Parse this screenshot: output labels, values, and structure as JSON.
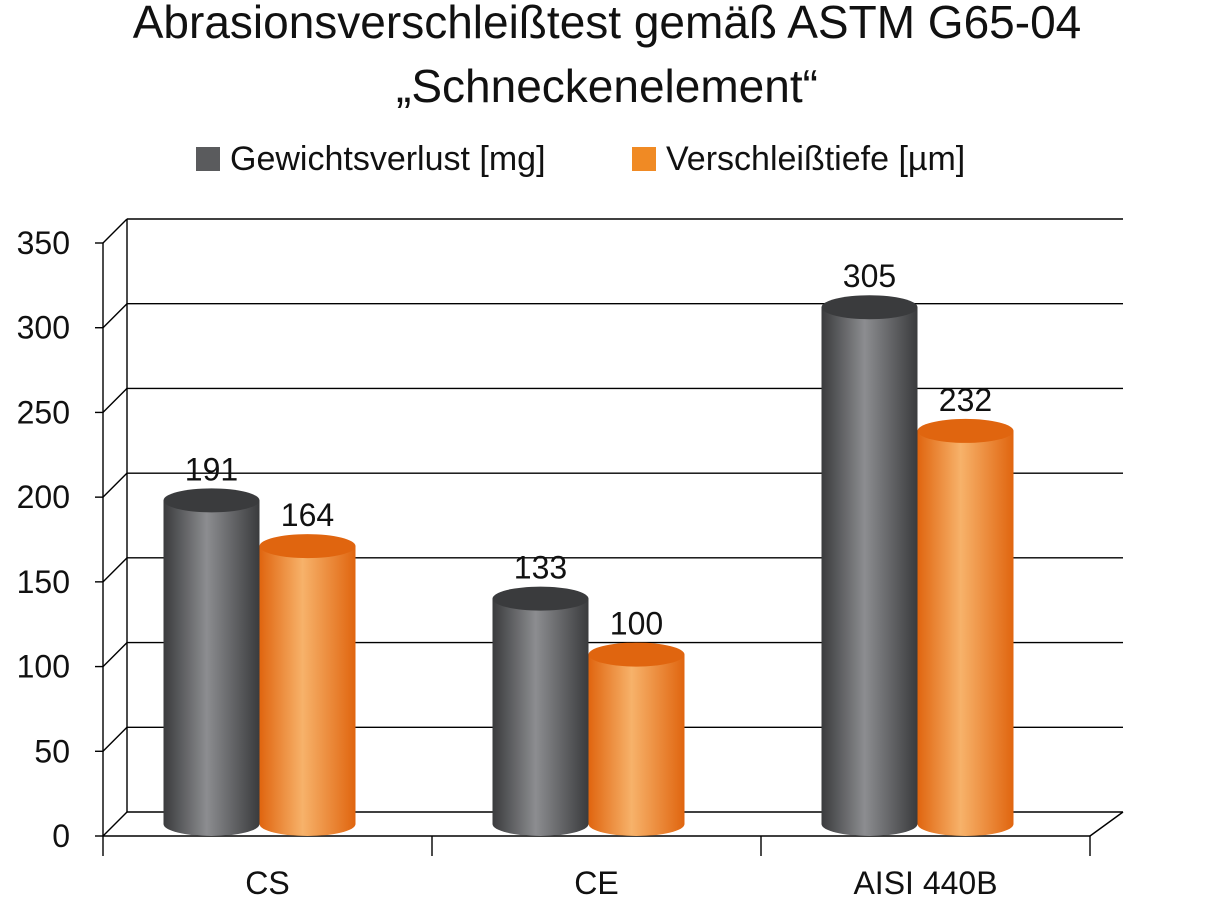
{
  "chart_data": {
    "type": "bar",
    "style": "3d-cylinder",
    "title_line1": "Abrasionsverschleißtest gemäß ASTM G65-04",
    "title_line2": "„Schneckenelement“",
    "categories": [
      "CS",
      "CE",
      "AISI 440B"
    ],
    "series": [
      {
        "name": "Gewichtsverlust [mg]",
        "values": [
          191,
          133,
          305
        ],
        "color": "#5a5b5d",
        "color_light": "#8c8d90",
        "color_dark": "#3a3b3d"
      },
      {
        "name": "Verschleißtiefe [µm]",
        "values": [
          164,
          100,
          232
        ],
        "color": "#f08a24",
        "color_light": "#f7b26a",
        "color_dark": "#e0650f"
      }
    ],
    "ylim": [
      0,
      350
    ],
    "yticks": [
      0,
      50,
      100,
      150,
      200,
      250,
      300,
      350
    ],
    "xlabel": "",
    "ylabel": "",
    "grid": true,
    "legend_position": "top"
  }
}
